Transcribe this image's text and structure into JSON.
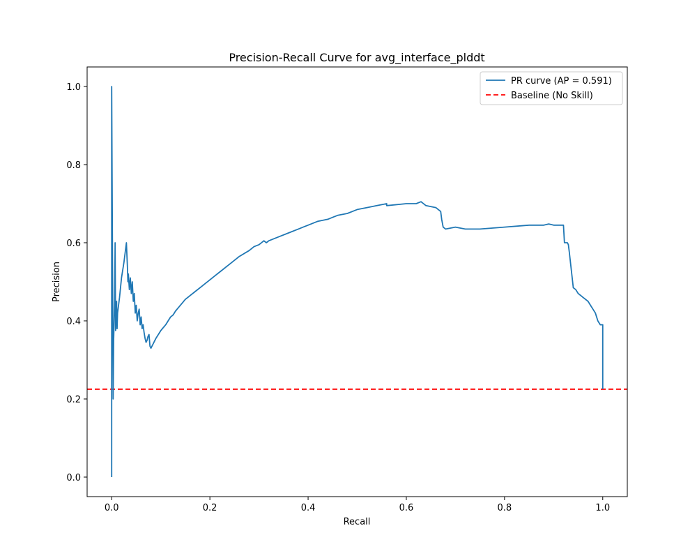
{
  "chart_data": {
    "type": "line",
    "title": "Precision-Recall Curve for avg_interface_plddt",
    "xlabel": "Recall",
    "ylabel": "Precision",
    "xlim": [
      -0.05,
      1.05
    ],
    "ylim": [
      -0.05,
      1.05
    ],
    "xticks": [
      0.0,
      0.2,
      0.4,
      0.6,
      0.8,
      1.0
    ],
    "xtick_labels": [
      "0.0",
      "0.2",
      "0.4",
      "0.6",
      "0.8",
      "1.0"
    ],
    "yticks": [
      0.0,
      0.2,
      0.4,
      0.6,
      0.8,
      1.0
    ],
    "ytick_labels": [
      "0.0",
      "0.2",
      "0.4",
      "0.6",
      "0.8",
      "1.0"
    ],
    "grid": false,
    "legend_position": "top-right",
    "series": [
      {
        "name": "PR curve (AP = 0.591)",
        "color": "#1f77b4",
        "style": "solid",
        "x": [
          0.0,
          0.0,
          0.003,
          0.004,
          0.005,
          0.006,
          0.007,
          0.008,
          0.009,
          0.01,
          0.011,
          0.012,
          0.014,
          0.016,
          0.02,
          0.025,
          0.03,
          0.032,
          0.033,
          0.034,
          0.036,
          0.038,
          0.04,
          0.042,
          0.044,
          0.046,
          0.048,
          0.05,
          0.052,
          0.054,
          0.056,
          0.058,
          0.06,
          0.062,
          0.064,
          0.066,
          0.068,
          0.07,
          0.072,
          0.074,
          0.076,
          0.078,
          0.08,
          0.082,
          0.084,
          0.086,
          0.09,
          0.095,
          0.1,
          0.11,
          0.12,
          0.125,
          0.13,
          0.14,
          0.15,
          0.16,
          0.17,
          0.18,
          0.19,
          0.2,
          0.21,
          0.22,
          0.24,
          0.26,
          0.28,
          0.29,
          0.3,
          0.31,
          0.315,
          0.32,
          0.34,
          0.36,
          0.38,
          0.39,
          0.4,
          0.42,
          0.44,
          0.45,
          0.46,
          0.48,
          0.5,
          0.52,
          0.54,
          0.56,
          0.56,
          0.6,
          0.62,
          0.63,
          0.64,
          0.66,
          0.67,
          0.672,
          0.675,
          0.68,
          0.7,
          0.72,
          0.75,
          0.8,
          0.85,
          0.88,
          0.89,
          0.9,
          0.92,
          0.922,
          0.928,
          0.93,
          0.932,
          0.94,
          0.945,
          0.95,
          0.955,
          0.96,
          0.97,
          0.975,
          0.98,
          0.985,
          0.99,
          0.995,
          0.997,
          1.0,
          1.0
        ],
        "y": [
          0.0,
          1.0,
          0.2,
          0.35,
          0.4,
          0.45,
          0.6,
          0.375,
          0.42,
          0.45,
          0.38,
          0.42,
          0.44,
          0.46,
          0.51,
          0.55,
          0.6,
          0.54,
          0.5,
          0.52,
          0.48,
          0.51,
          0.47,
          0.5,
          0.45,
          0.47,
          0.42,
          0.44,
          0.4,
          0.42,
          0.43,
          0.39,
          0.41,
          0.38,
          0.39,
          0.37,
          0.355,
          0.345,
          0.35,
          0.36,
          0.365,
          0.335,
          0.33,
          0.335,
          0.34,
          0.345,
          0.355,
          0.365,
          0.375,
          0.39,
          0.41,
          0.415,
          0.425,
          0.44,
          0.455,
          0.465,
          0.475,
          0.485,
          0.495,
          0.505,
          0.515,
          0.525,
          0.545,
          0.565,
          0.58,
          0.59,
          0.595,
          0.605,
          0.6,
          0.605,
          0.615,
          0.625,
          0.635,
          0.64,
          0.645,
          0.655,
          0.66,
          0.665,
          0.67,
          0.675,
          0.685,
          0.69,
          0.695,
          0.7,
          0.695,
          0.7,
          0.7,
          0.705,
          0.695,
          0.69,
          0.68,
          0.66,
          0.64,
          0.635,
          0.64,
          0.635,
          0.635,
          0.64,
          0.645,
          0.645,
          0.648,
          0.645,
          0.645,
          0.6,
          0.6,
          0.595,
          0.575,
          0.485,
          0.48,
          0.47,
          0.465,
          0.46,
          0.45,
          0.44,
          0.43,
          0.42,
          0.4,
          0.39,
          0.39,
          0.39,
          0.225
        ]
      },
      {
        "name": "Baseline (No Skill)",
        "color": "#ff0000",
        "style": "dashed",
        "y_constant": 0.225
      }
    ]
  }
}
